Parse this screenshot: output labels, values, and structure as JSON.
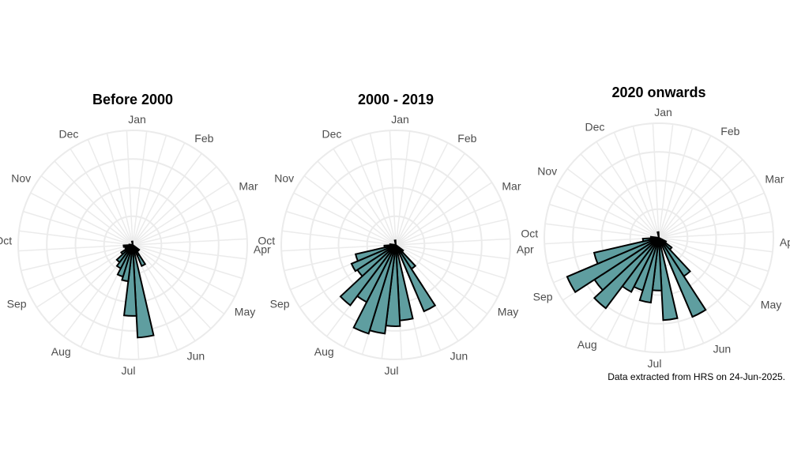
{
  "chart_data": [
    {
      "type": "bar",
      "polar": true,
      "title": "Before 2000",
      "categories": [
        "Jan",
        "Feb",
        "Mar",
        "Apr",
        "May",
        "Jun",
        "Jul",
        "Aug",
        "Sep",
        "Oct",
        "Nov",
        "Dec"
      ],
      "bins_per_month": 3,
      "bins": [
        {
          "from": "Jun 20",
          "to": "Jun 30",
          "value": 0.2
        },
        {
          "from": "Jul 1",
          "to": "Jul 10",
          "value": 0.81
        },
        {
          "from": "Jul 11",
          "to": "Jul 20",
          "value": 0.62
        },
        {
          "from": "Jul 21",
          "to": "Jul 31",
          "value": 0.32
        },
        {
          "from": "Aug 1",
          "to": "Aug 10",
          "value": 0.29
        },
        {
          "from": "Aug 11",
          "to": "Aug 20",
          "value": 0.23
        },
        {
          "from": "Aug 21",
          "to": "Aug 31",
          "value": 0.19
        },
        {
          "from": "Sep 1",
          "to": "Sep 10",
          "value": 0.12
        },
        {
          "from": "Sep 11",
          "to": "Sep 20",
          "value": 0.07
        },
        {
          "from": "Sep 21",
          "to": "Sep 30",
          "value": 0.04
        },
        {
          "from": "Oct 1",
          "to": "Oct 10",
          "value": 0.08
        },
        {
          "from": "Oct 11",
          "to": "Oct 20",
          "value": 0.03
        },
        {
          "from": "Jan 1",
          "to": "Jan 10",
          "value": 0.03
        },
        {
          "from": "May 21",
          "to": "May 31",
          "value": 0.07
        },
        {
          "from": "Jun 11",
          "to": "Jun 19",
          "value": 0.1
        }
      ],
      "grid": true,
      "legend": "none"
    },
    {
      "type": "bar",
      "polar": true,
      "title": "2000 - 2019",
      "categories": [
        "Jan",
        "Feb",
        "Mar",
        "Apr",
        "May",
        "Jun",
        "Jul",
        "Aug",
        "Sep",
        "Oct",
        "Nov",
        "Dec"
      ],
      "bins_per_month": 3,
      "bins": [
        {
          "from": "Jun 1",
          "to": "Jun 10",
          "value": 0.25
        },
        {
          "from": "Jun 11",
          "to": "Jun 19",
          "value": 0.43
        },
        {
          "from": "Jun 20",
          "to": "Jun 30",
          "value": 0.63
        },
        {
          "from": "Jul 1",
          "to": "Jul 10",
          "value": 0.66
        },
        {
          "from": "Jul 11",
          "to": "Jul 20",
          "value": 0.71
        },
        {
          "from": "Jul 21",
          "to": "Jul 31",
          "value": 0.78
        },
        {
          "from": "Aug 1",
          "to": "Aug 10",
          "value": 0.81
        },
        {
          "from": "Aug 11",
          "to": "Aug 20",
          "value": 0.56
        },
        {
          "from": "Aug 21",
          "to": "Aug 31",
          "value": 0.66
        },
        {
          "from": "Sep 1",
          "to": "Sep 10",
          "value": 0.4
        },
        {
          "from": "Sep 11",
          "to": "Sep 20",
          "value": 0.42
        },
        {
          "from": "Sep 21",
          "to": "Sep 30",
          "value": 0.36
        },
        {
          "from": "Oct 1",
          "to": "Oct 10",
          "value": 0.1
        },
        {
          "from": "Oct 11",
          "to": "Oct 20",
          "value": 0.05
        },
        {
          "from": "Jan 1",
          "to": "Jan 10",
          "value": 0.04
        },
        {
          "from": "May 21",
          "to": "May 31",
          "value": 0.08
        }
      ],
      "grid": true,
      "legend": "none"
    },
    {
      "type": "bar",
      "polar": true,
      "title": "2020 onwards",
      "categories": [
        "Jan",
        "Feb",
        "Mar",
        "Apr",
        "May",
        "Jun",
        "Jul",
        "Aug",
        "Sep",
        "Oct",
        "Nov",
        "Dec"
      ],
      "bins_per_month": 3,
      "bins": [
        {
          "from": "May 21",
          "to": "May 31",
          "value": 0.14
        },
        {
          "from": "Jun 1",
          "to": "Jun 10",
          "value": 0.4
        },
        {
          "from": "Jun 11",
          "to": "Jun 19",
          "value": 0.5
        },
        {
          "from": "Jun 20",
          "to": "Jun 30",
          "value": 0.75
        },
        {
          "from": "Jul 1",
          "to": "Jul 10",
          "value": 0.72
        },
        {
          "from": "Jul 11",
          "to": "Jul 20",
          "value": 0.46
        },
        {
          "from": "Jul 21",
          "to": "Jul 31",
          "value": 0.57
        },
        {
          "from": "Aug 1",
          "to": "Aug 10",
          "value": 0.48
        },
        {
          "from": "Aug 11",
          "to": "Aug 20",
          "value": 0.53
        },
        {
          "from": "Aug 21",
          "to": "Aug 31",
          "value": 0.77
        },
        {
          "from": "Sep 1",
          "to": "Sep 10",
          "value": 0.67
        },
        {
          "from": "Sep 11",
          "to": "Sep 20",
          "value": 0.87
        },
        {
          "from": "Sep 21",
          "to": "Sep 30",
          "value": 0.58
        },
        {
          "from": "Oct 1",
          "to": "Oct 10",
          "value": 0.14
        },
        {
          "from": "Oct 11",
          "to": "Oct 20",
          "value": 0.07
        },
        {
          "from": "Jan 1",
          "to": "Jan 10",
          "value": 0.05
        },
        {
          "from": "May 11",
          "to": "May 20",
          "value": 0.07
        }
      ],
      "grid": true,
      "legend": "none"
    }
  ],
  "style": {
    "bar_fill": "#5f9ea0",
    "bar_stroke": "#000000",
    "grid_color": "#ebebeb",
    "label_color": "#4d4d4d"
  },
  "caption": "Data extracted from HRS on 24-Jun-2025."
}
